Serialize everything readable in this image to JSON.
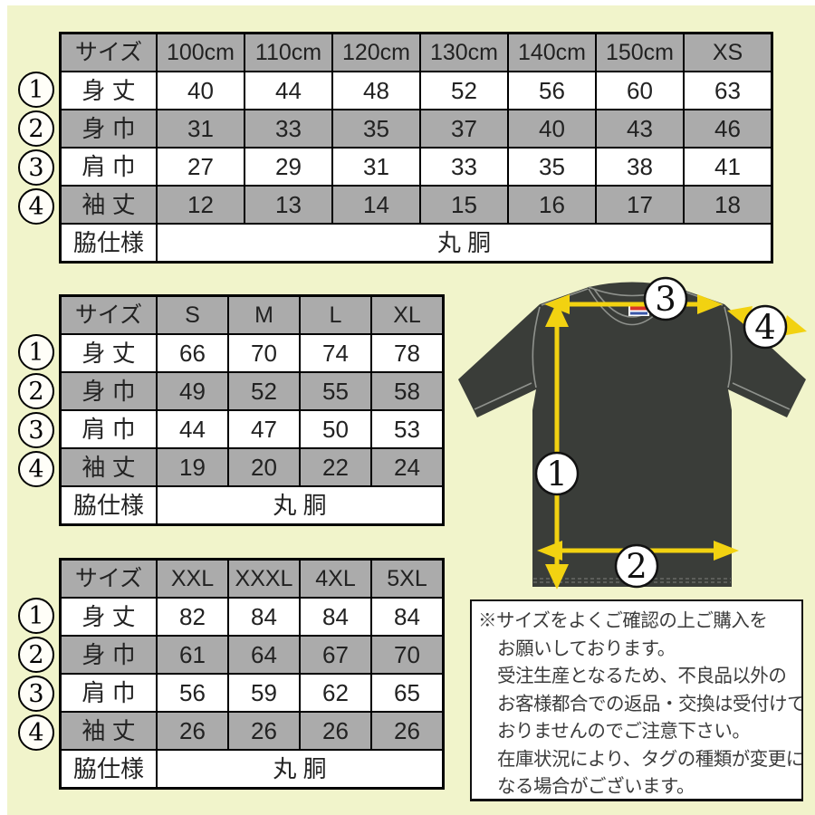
{
  "colors": {
    "background": "#f1f4cb",
    "frame": "#ffffff",
    "table_header_bg": "#ababab",
    "table_alt_row_bg": "#ababab",
    "table_row_bg": "#ffffff",
    "table_border": "#000000",
    "tshirt_body": "#3a3d39",
    "tshirt_seam": "#8f928d",
    "arrow": "#f2d211",
    "marker_circle_bg": "#ffffff",
    "tag_red": "#d8362a",
    "tag_blue": "#3a57a8",
    "notice_text": "#3b3b3b"
  },
  "tables": [
    {
      "name": "kids-sizes",
      "header": [
        "サイズ",
        "100cm",
        "110cm",
        "120cm",
        "130cm",
        "140cm",
        "150cm",
        "XS"
      ],
      "rows": [
        {
          "marker": "1",
          "label": "身 丈",
          "values": [
            "40",
            "44",
            "48",
            "52",
            "56",
            "60",
            "63"
          ]
        },
        {
          "marker": "2",
          "label": "身 巾",
          "values": [
            "31",
            "33",
            "35",
            "37",
            "40",
            "43",
            "46"
          ]
        },
        {
          "marker": "3",
          "label": "肩 巾",
          "values": [
            "27",
            "29",
            "31",
            "33",
            "35",
            "38",
            "41"
          ]
        },
        {
          "marker": "4",
          "label": "袖 丈",
          "values": [
            "12",
            "13",
            "14",
            "15",
            "16",
            "17",
            "18"
          ]
        }
      ],
      "footer": {
        "label": "脇仕様",
        "value": "丸 胴"
      }
    },
    {
      "name": "adult-sizes",
      "header": [
        "サイズ",
        "S",
        "M",
        "L",
        "XL"
      ],
      "rows": [
        {
          "marker": "1",
          "label": "身 丈",
          "values": [
            "66",
            "70",
            "74",
            "78"
          ]
        },
        {
          "marker": "2",
          "label": "身 巾",
          "values": [
            "49",
            "52",
            "55",
            "58"
          ]
        },
        {
          "marker": "3",
          "label": "肩 巾",
          "values": [
            "44",
            "47",
            "50",
            "53"
          ]
        },
        {
          "marker": "4",
          "label": "袖 丈",
          "values": [
            "19",
            "20",
            "22",
            "24"
          ]
        }
      ],
      "footer": {
        "label": "脇仕様",
        "value": "丸 胴"
      }
    },
    {
      "name": "plus-sizes",
      "header": [
        "サイズ",
        "XXL",
        "XXXL",
        "4XL",
        "5XL"
      ],
      "rows": [
        {
          "marker": "1",
          "label": "身 丈",
          "values": [
            "82",
            "84",
            "84",
            "84"
          ]
        },
        {
          "marker": "2",
          "label": "身 巾",
          "values": [
            "61",
            "64",
            "67",
            "70"
          ]
        },
        {
          "marker": "3",
          "label": "肩 巾",
          "values": [
            "56",
            "59",
            "62",
            "65"
          ]
        },
        {
          "marker": "4",
          "label": "袖 丈",
          "values": [
            "26",
            "26",
            "26",
            "26"
          ]
        }
      ],
      "footer": {
        "label": "脇仕様",
        "value": "丸 胴"
      }
    }
  ],
  "diagram": {
    "markers": {
      "body_length": "1",
      "body_width": "2",
      "shoulder_width": "3",
      "sleeve_length": "4"
    }
  },
  "notice": {
    "lines": [
      "※サイズをよくご確認の上ご購入を",
      "お願いしております。",
      "受注生産となるため、不良品以外の",
      "お客様都合での返品・交換は受付けて",
      "おりませんのでご注意下さい。",
      "在庫状況により、タグの種類が変更に",
      "なる場合がございます。"
    ]
  }
}
